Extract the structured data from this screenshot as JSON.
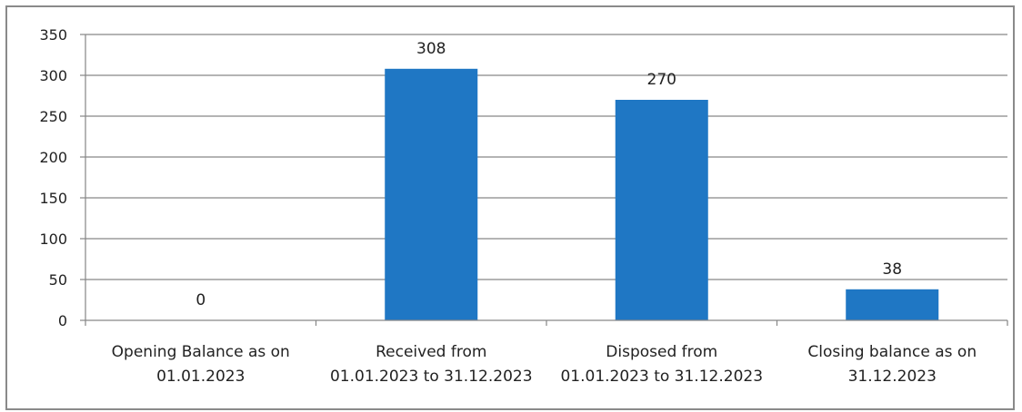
{
  "chart_data": {
    "type": "bar",
    "categories": [
      [
        "Opening Balance as on",
        "01.01.2023"
      ],
      [
        "Received from",
        "01.01.2023 to 31.12.2023"
      ],
      [
        "Disposed from",
        "01.01.2023 to 31.12.2023"
      ],
      [
        "Closing balance as on",
        "31.12.2023"
      ]
    ],
    "values": [
      0,
      308,
      270,
      38
    ],
    "data_labels": [
      "0",
      "308",
      "270",
      "38"
    ],
    "y_ticks": [
      "0",
      "50",
      "100",
      "150",
      "200",
      "250",
      "300",
      "350"
    ],
    "ylim": [
      0,
      350
    ],
    "grid": true,
    "legend": "none",
    "title": "",
    "xlabel": "",
    "ylabel": "",
    "bar_color": "#1F77C4",
    "grid_color": "#868686"
  }
}
